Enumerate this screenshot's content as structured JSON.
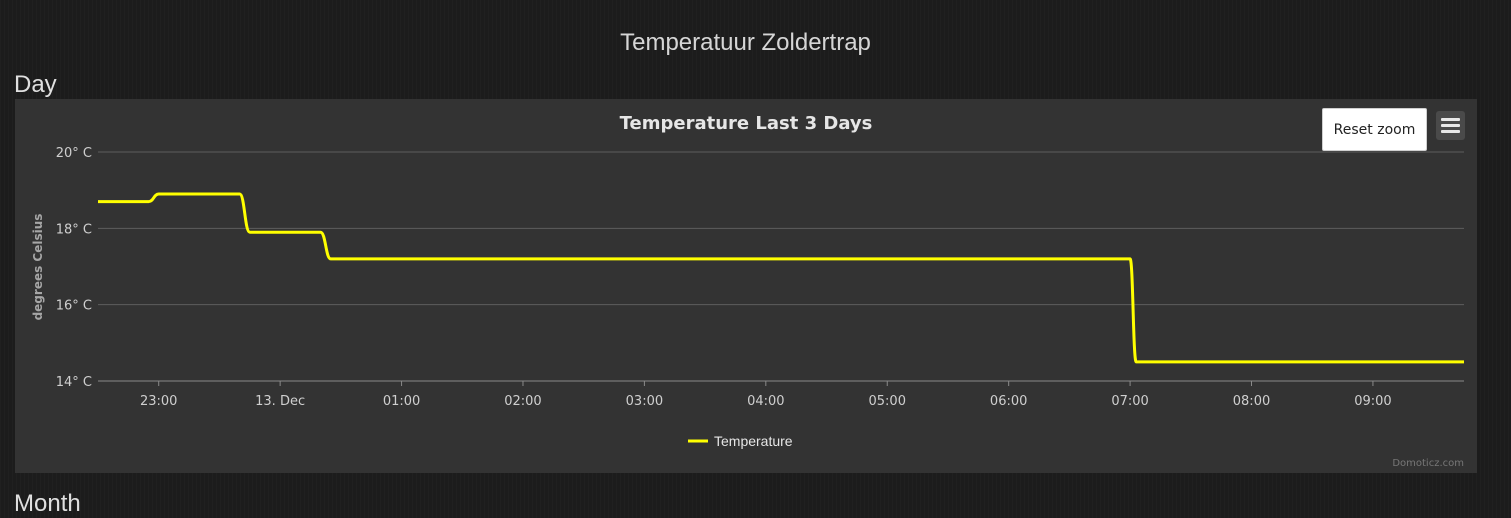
{
  "page": {
    "title": "Temperatuur Zoldertrap",
    "sections": {
      "day": "Day",
      "month": "Month"
    }
  },
  "chart": {
    "reset_zoom_label": "Reset zoom",
    "menu_icon": "hamburger-menu-icon",
    "credit": "Domoticz.com",
    "line_color": "#ffff00"
  },
  "chart_data": {
    "type": "line",
    "title": "Temperature Last 3 Days",
    "xlabel": "",
    "ylabel": "degrees Celsius",
    "ylim": [
      14,
      20
    ],
    "xlim": [
      "2012-12-12 22:30",
      "2012-12-13 09:45"
    ],
    "yticks": [
      {
        "value": 20,
        "label": "20° C"
      },
      {
        "value": 18,
        "label": "18° C"
      },
      {
        "value": 16,
        "label": "16° C"
      },
      {
        "value": 14,
        "label": "14° C"
      }
    ],
    "xticks": [
      {
        "value": "2012-12-12 23:00",
        "label": "23:00"
      },
      {
        "value": "2012-12-13 00:00",
        "label": "13. Dec"
      },
      {
        "value": "2012-12-13 01:00",
        "label": "01:00"
      },
      {
        "value": "2012-12-13 02:00",
        "label": "02:00"
      },
      {
        "value": "2012-12-13 03:00",
        "label": "03:00"
      },
      {
        "value": "2012-12-13 04:00",
        "label": "04:00"
      },
      {
        "value": "2012-12-13 05:00",
        "label": "05:00"
      },
      {
        "value": "2012-12-13 06:00",
        "label": "06:00"
      },
      {
        "value": "2012-12-13 07:00",
        "label": "07:00"
      },
      {
        "value": "2012-12-13 08:00",
        "label": "08:00"
      },
      {
        "value": "2012-12-13 09:00",
        "label": "09:00"
      }
    ],
    "grid": true,
    "legend": "bottom-center",
    "series": [
      {
        "name": "Temperature",
        "color": "#ffff00",
        "points": [
          {
            "x": "2012-12-12 22:30",
            "y": 18.7
          },
          {
            "x": "2012-12-12 22:55",
            "y": 18.7
          },
          {
            "x": "2012-12-12 23:00",
            "y": 18.9
          },
          {
            "x": "2012-12-12 23:40",
            "y": 18.9
          },
          {
            "x": "2012-12-12 23:45",
            "y": 17.9
          },
          {
            "x": "2012-12-13 00:20",
            "y": 17.9
          },
          {
            "x": "2012-12-13 00:25",
            "y": 17.2
          },
          {
            "x": "2012-12-13 07:00",
            "y": 17.2
          },
          {
            "x": "2012-12-13 07:03",
            "y": 14.5
          },
          {
            "x": "2012-12-13 09:45",
            "y": 14.5
          }
        ]
      }
    ]
  }
}
